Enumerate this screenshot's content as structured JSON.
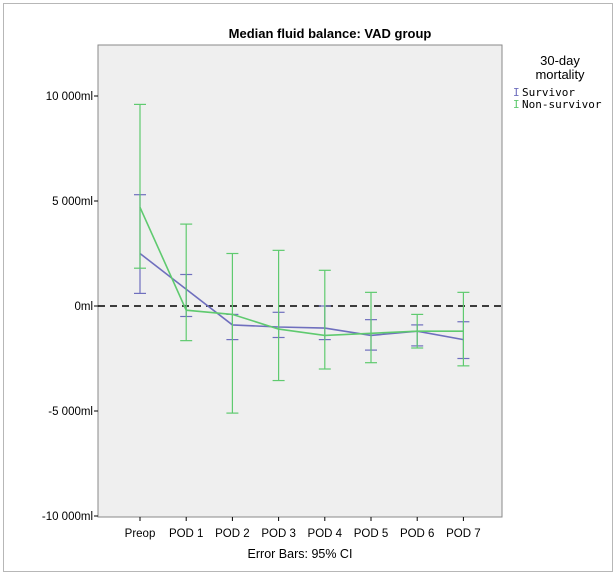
{
  "chart_data": {
    "type": "line",
    "title": "Median fluid balance: VAD group",
    "xlabel": "Error Bars: 95% CI",
    "ylabel": "",
    "categories": [
      "Preop",
      "POD 1",
      "POD 2",
      "POD 3",
      "POD 4",
      "POD 5",
      "POD 6",
      "POD 7"
    ],
    "ylim": [
      -10000,
      10000
    ],
    "yticks": [
      10000,
      5000,
      0,
      -5000,
      -10000
    ],
    "ytick_labels": [
      "10 000ml",
      "5 000ml",
      "0ml",
      "-5 000ml",
      "-10 000ml"
    ],
    "reference_line": 0,
    "grid": false,
    "legend_position": "right",
    "legend_title": [
      "30-day",
      "mortality"
    ],
    "series": [
      {
        "name": "Survivor",
        "color": "#6f6fbe",
        "values": [
          2500,
          800,
          -900,
          -1000,
          -1050,
          -1400,
          -1200,
          -1600
        ],
        "ci_low": [
          600,
          -500,
          -1600,
          -1500,
          -1600,
          -2100,
          -1900,
          -2500
        ],
        "ci_high": [
          5300,
          1500,
          -400,
          -300,
          0,
          -650,
          -900,
          -750
        ]
      },
      {
        "name": "Non-survivor",
        "color": "#5fca6f",
        "values": [
          4700,
          -200,
          -400,
          -1100,
          -1400,
          -1300,
          -1200,
          -1200
        ],
        "ci_low": [
          1800,
          -1650,
          -5100,
          -3550,
          -3000,
          -2700,
          -2000,
          -2850
        ],
        "ci_high": [
          9600,
          3900,
          2500,
          2650,
          1700,
          650,
          -400,
          650
        ]
      }
    ]
  }
}
